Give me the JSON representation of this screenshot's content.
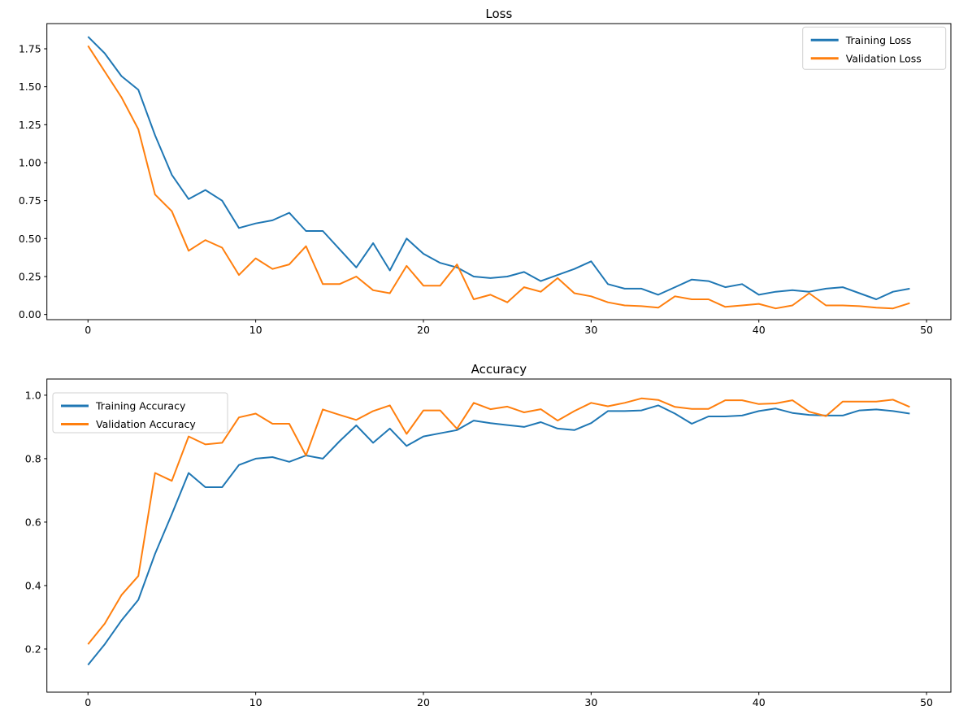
{
  "figure": {
    "background": "#ffffff"
  },
  "styles": {
    "training_color": "#1f77b4",
    "validation_color": "#ff7f0e",
    "text_color": "#000000",
    "spine_color": "#000000",
    "legend_border": "#cccccc",
    "legend_background": "#ffffff"
  },
  "chart_data": [
    {
      "id": "loss",
      "type": "line",
      "title": "Loss",
      "xlabel": "",
      "ylabel": "",
      "grid": false,
      "legend_position": "upper right",
      "xlim": [
        -2.45,
        51.45
      ],
      "ylim": [
        -0.034,
        1.916
      ],
      "xticks": [
        0,
        10,
        20,
        30,
        40,
        50
      ],
      "xtick_labels": [
        "0",
        "10",
        "20",
        "30",
        "40",
        "50"
      ],
      "yticks": [
        0,
        0.25,
        0.5,
        0.75,
        1.0,
        1.25,
        1.5,
        1.75
      ],
      "ytick_labels": [
        "0.00",
        "0.25",
        "0.50",
        "0.75",
        "1.00",
        "1.25",
        "1.50",
        "1.75"
      ],
      "x": [
        0,
        1,
        2,
        3,
        4,
        5,
        6,
        7,
        8,
        9,
        10,
        11,
        12,
        13,
        14,
        15,
        16,
        17,
        18,
        19,
        20,
        21,
        22,
        23,
        24,
        25,
        26,
        27,
        28,
        29,
        30,
        31,
        32,
        33,
        34,
        35,
        36,
        37,
        38,
        39,
        40,
        41,
        42,
        43,
        44,
        45,
        46,
        47,
        48,
        49
      ],
      "series": [
        {
          "name": "Training Loss",
          "color": "#1f77b4",
          "values": [
            1.83,
            1.72,
            1.57,
            1.48,
            1.18,
            0.92,
            0.76,
            0.82,
            0.75,
            0.57,
            0.6,
            0.62,
            0.67,
            0.55,
            0.55,
            0.43,
            0.31,
            0.47,
            0.29,
            0.5,
            0.4,
            0.34,
            0.31,
            0.25,
            0.24,
            0.25,
            0.28,
            0.22,
            0.26,
            0.3,
            0.35,
            0.2,
            0.17,
            0.17,
            0.13,
            0.18,
            0.23,
            0.22,
            0.18,
            0.2,
            0.13,
            0.15,
            0.16,
            0.15,
            0.17,
            0.18,
            0.14,
            0.1,
            0.15,
            0.17
          ]
        },
        {
          "name": "Validation Loss",
          "color": "#ff7f0e",
          "values": [
            1.77,
            1.6,
            1.43,
            1.22,
            0.79,
            0.68,
            0.42,
            0.49,
            0.44,
            0.26,
            0.37,
            0.3,
            0.33,
            0.45,
            0.2,
            0.2,
            0.25,
            0.16,
            0.14,
            0.32,
            0.19,
            0.19,
            0.33,
            0.1,
            0.13,
            0.08,
            0.18,
            0.15,
            0.24,
            0.14,
            0.12,
            0.08,
            0.06,
            0.055,
            0.045,
            0.12,
            0.1,
            0.1,
            0.05,
            0.06,
            0.07,
            0.04,
            0.06,
            0.14,
            0.06,
            0.06,
            0.055,
            0.045,
            0.04,
            0.075
          ]
        }
      ]
    },
    {
      "id": "accuracy",
      "type": "line",
      "title": "Accuracy",
      "xlabel": "",
      "ylabel": "",
      "grid": false,
      "legend_position": "upper left",
      "xlim": [
        -2.45,
        51.45
      ],
      "ylim": [
        0.064,
        1.051
      ],
      "xticks": [
        0,
        10,
        20,
        30,
        40,
        50
      ],
      "xtick_labels": [
        "0",
        "10",
        "20",
        "30",
        "40",
        "50"
      ],
      "yticks": [
        0.2,
        0.4,
        0.6,
        0.8,
        1.0
      ],
      "ytick_labels": [
        "0.2",
        "0.4",
        "0.6",
        "0.8",
        "1.0"
      ],
      "x": [
        0,
        1,
        2,
        3,
        4,
        5,
        6,
        7,
        8,
        9,
        10,
        11,
        12,
        13,
        14,
        15,
        16,
        17,
        18,
        19,
        20,
        21,
        22,
        23,
        24,
        25,
        26,
        27,
        28,
        29,
        30,
        31,
        32,
        33,
        34,
        35,
        36,
        37,
        38,
        39,
        40,
        41,
        42,
        43,
        44,
        45,
        46,
        47,
        48,
        49
      ],
      "series": [
        {
          "name": "Training Accuracy",
          "color": "#1f77b4",
          "values": [
            0.15,
            0.215,
            0.29,
            0.355,
            0.5,
            0.625,
            0.755,
            0.71,
            0.71,
            0.78,
            0.8,
            0.805,
            0.79,
            0.81,
            0.8,
            0.855,
            0.905,
            0.85,
            0.895,
            0.84,
            0.87,
            0.88,
            0.89,
            0.92,
            0.912,
            0.906,
            0.9,
            0.915,
            0.895,
            0.89,
            0.912,
            0.95,
            0.95,
            0.952,
            0.968,
            0.942,
            0.91,
            0.933,
            0.933,
            0.936,
            0.95,
            0.958,
            0.944,
            0.938,
            0.936,
            0.936,
            0.952,
            0.955,
            0.95,
            0.942
          ]
        },
        {
          "name": "Validation Accuracy",
          "color": "#ff7f0e",
          "values": [
            0.215,
            0.28,
            0.37,
            0.43,
            0.755,
            0.73,
            0.87,
            0.845,
            0.85,
            0.93,
            0.942,
            0.91,
            0.91,
            0.81,
            0.955,
            0.938,
            0.922,
            0.95,
            0.968,
            0.878,
            0.952,
            0.952,
            0.894,
            0.976,
            0.956,
            0.964,
            0.946,
            0.956,
            0.92,
            0.95,
            0.976,
            0.965,
            0.976,
            0.99,
            0.985,
            0.963,
            0.957,
            0.957,
            0.984,
            0.984,
            0.972,
            0.974,
            0.984,
            0.948,
            0.934,
            0.98,
            0.98,
            0.98,
            0.986,
            0.963
          ]
        }
      ]
    }
  ]
}
